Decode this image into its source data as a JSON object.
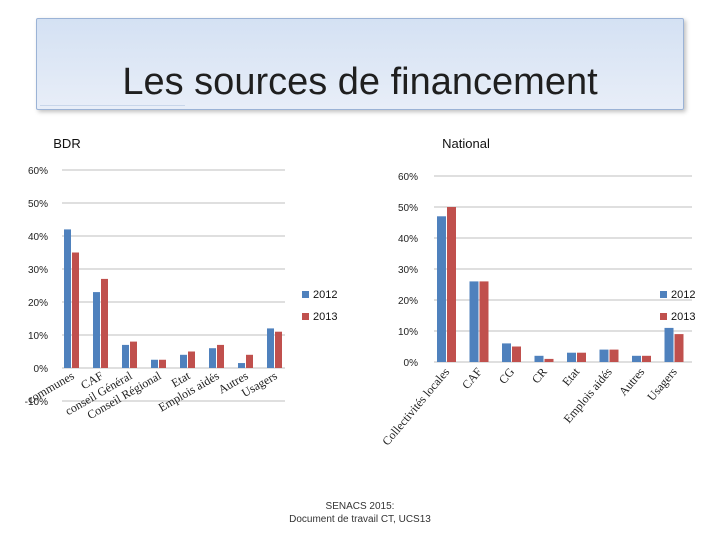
{
  "slide": {
    "title": "Les sources de financement",
    "footer_line1": "SENACS 2015:",
    "footer_line2": "Document de travail CT,  UCS13"
  },
  "colors": {
    "series_2012": "#4f81bd",
    "series_2013": "#c0504d",
    "grid": "#bfbfbf"
  },
  "chart_data": [
    {
      "type": "bar",
      "title": "BDR",
      "xlabel": "",
      "ylabel": "",
      "ylim": [
        -10,
        60
      ],
      "yticks": [
        "-10%",
        "0%",
        "10%",
        "20%",
        "30%",
        "40%",
        "50%",
        "60%"
      ],
      "grid": true,
      "legend": "right",
      "categories": [
        "communes",
        "CAF",
        "conseil Général",
        "Conseil Régional",
        "Etat",
        "Emplois aidés",
        "Autres",
        "Usagers"
      ],
      "series": [
        {
          "name": "2012",
          "values": [
            42,
            23,
            7,
            2.5,
            4,
            6,
            1.5,
            12
          ]
        },
        {
          "name": "2013",
          "values": [
            35,
            27,
            8,
            2.5,
            5,
            7,
            4,
            11
          ]
        }
      ]
    },
    {
      "type": "bar",
      "title": "National",
      "xlabel": "",
      "ylabel": "",
      "ylim": [
        0,
        60
      ],
      "yticks": [
        "0%",
        "10%",
        "20%",
        "30%",
        "40%",
        "50%",
        "60%"
      ],
      "grid": true,
      "legend": "right",
      "categories": [
        "Collectivités locales",
        "CAF",
        "CG",
        "CR",
        "Etat",
        "Emplois aidés",
        "Autres",
        "Usagers"
      ],
      "series": [
        {
          "name": "2012",
          "values": [
            47,
            26,
            6,
            2,
            3,
            4,
            2,
            11
          ]
        },
        {
          "name": "2013",
          "values": [
            50,
            26,
            5,
            1,
            3,
            4,
            2,
            9
          ]
        }
      ]
    }
  ]
}
